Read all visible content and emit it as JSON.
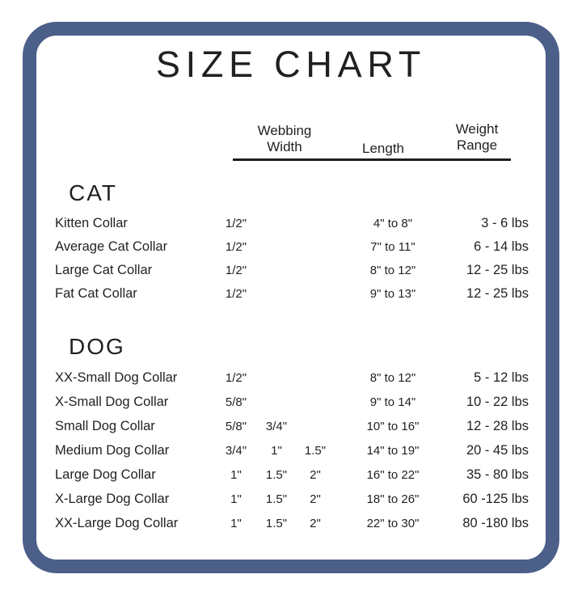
{
  "frame": {
    "border_color": "#4b5f89",
    "background": "#ffffff",
    "text_color": "#231f20"
  },
  "chart_data": {
    "type": "table",
    "title": "SIZE CHART",
    "column_headers": {
      "webbing_line1": "Webbing",
      "webbing_line2": "Width",
      "length": "Length",
      "weight_line1": "Weight",
      "weight_line2": "Range"
    },
    "sections": [
      {
        "name": "CAT",
        "rows": [
          {
            "name": "Kitten Collar",
            "web1": "1/2\"",
            "web2": "",
            "web3": "",
            "length": "4\" to 8\"",
            "weight": "3 - 6 lbs"
          },
          {
            "name": "Average Cat Collar",
            "web1": "1/2\"",
            "web2": "",
            "web3": "",
            "length": "7\" to 11\"",
            "weight": "6 - 14 lbs"
          },
          {
            "name": "Large Cat Collar",
            "web1": "1/2\"",
            "web2": "",
            "web3": "",
            "length": "8\" to 12\"",
            "weight": "12 - 25 lbs"
          },
          {
            "name": "Fat Cat Collar",
            "web1": "1/2\"",
            "web2": "",
            "web3": "",
            "length": "9\" to 13\"",
            "weight": "12 - 25 lbs"
          }
        ]
      },
      {
        "name": "DOG",
        "rows": [
          {
            "name": "XX-Small Dog Collar",
            "web1": "1/2\"",
            "web2": "",
            "web3": "",
            "length": "8\" to 12\"",
            "weight": "5 - 12 lbs"
          },
          {
            "name": "X-Small Dog Collar",
            "web1": "5/8\"",
            "web2": "",
            "web3": "",
            "length": "9\" to 14\"",
            "weight": "10 - 22 lbs"
          },
          {
            "name": "Small Dog Collar",
            "web1": "5/8\"",
            "web2": "3/4\"",
            "web3": "",
            "length": "10\" to 16\"",
            "weight": "12 - 28 lbs"
          },
          {
            "name": "Medium Dog Collar",
            "web1": "3/4\"",
            "web2": "1\"",
            "web3": "1.5\"",
            "length": "14\" to 19\"",
            "weight": "20 - 45 lbs"
          },
          {
            "name": "Large Dog Collar",
            "web1": "1\"",
            "web2": "1.5\"",
            "web3": "2\"",
            "length": "16\" to 22\"",
            "weight": "35 - 80 lbs"
          },
          {
            "name": "X-Large Dog Collar",
            "web1": "1\"",
            "web2": "1.5\"",
            "web3": "2\"",
            "length": "18\" to 26\"",
            "weight": "60 -125 lbs"
          },
          {
            "name": "XX-Large Dog Collar",
            "web1": "1\"",
            "web2": "1.5\"",
            "web3": "2\"",
            "length": "22\" to 30\"",
            "weight": "80 -180 lbs"
          }
        ]
      }
    ]
  }
}
